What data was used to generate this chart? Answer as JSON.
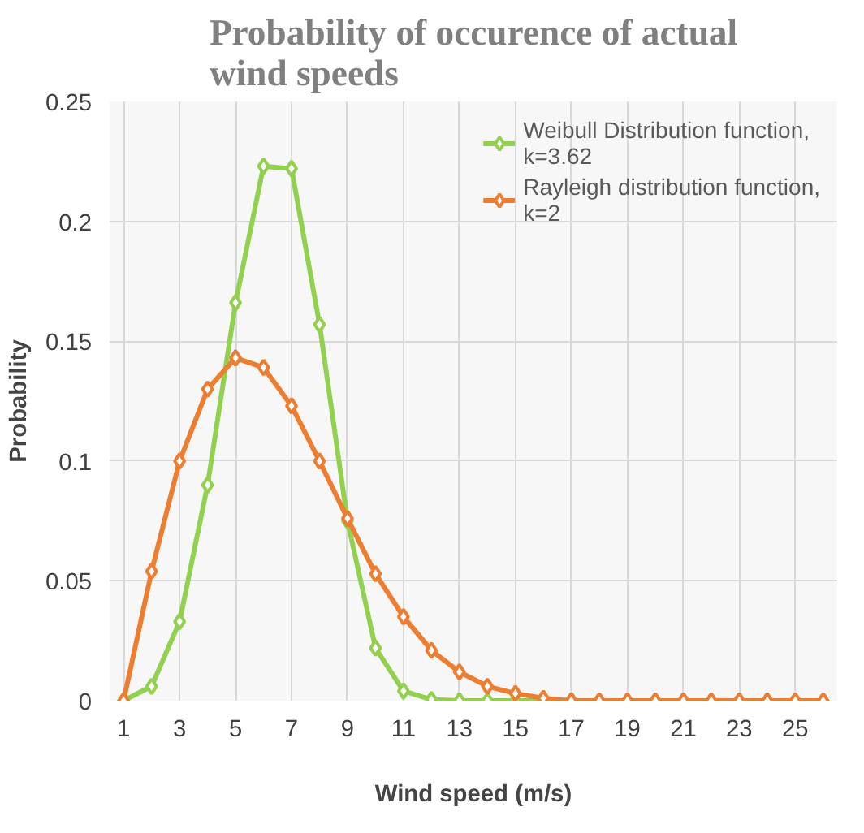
{
  "chart_data": {
    "type": "line",
    "title": "Probability of occurence of actual wind speeds",
    "xlabel": "Wind speed (m/s)",
    "ylabel": "Probability",
    "x": [
      1,
      2,
      3,
      4,
      5,
      6,
      7,
      8,
      9,
      10,
      11,
      12,
      13,
      14,
      15,
      16,
      17,
      18,
      19,
      20,
      21,
      22,
      23,
      24,
      25,
      26
    ],
    "xlim": [
      0.5,
      26.5
    ],
    "xticks": [
      1,
      3,
      5,
      7,
      9,
      11,
      13,
      15,
      17,
      19,
      21,
      23,
      25
    ],
    "ylim": [
      0,
      0.25
    ],
    "yticks": [
      0,
      0.05,
      0.1,
      0.15,
      0.2,
      0.25
    ],
    "series": [
      {
        "name": "Weibull Distribution function, k=3.62",
        "color": "#92d050",
        "values": [
          0,
          0.006,
          0.033,
          0.09,
          0.166,
          0.223,
          0.222,
          0.157,
          0.075,
          0.022,
          0.004,
          0.0005,
          0,
          0,
          0,
          0,
          0,
          null,
          null,
          null,
          null,
          null,
          null,
          null,
          null,
          null
        ]
      },
      {
        "name": "Rayleigh distribution function, k=2",
        "color": "#ed7d31",
        "values": [
          0,
          0.054,
          0.1,
          0.13,
          0.143,
          0.139,
          0.123,
          0.1,
          0.076,
          0.053,
          0.035,
          0.021,
          0.012,
          0.006,
          0.003,
          0.001,
          0,
          0,
          0,
          0,
          0,
          0,
          0,
          0,
          0,
          0
        ]
      }
    ],
    "grid": true,
    "legend": "top right",
    "marker": "diamond",
    "line_style": "solid"
  }
}
